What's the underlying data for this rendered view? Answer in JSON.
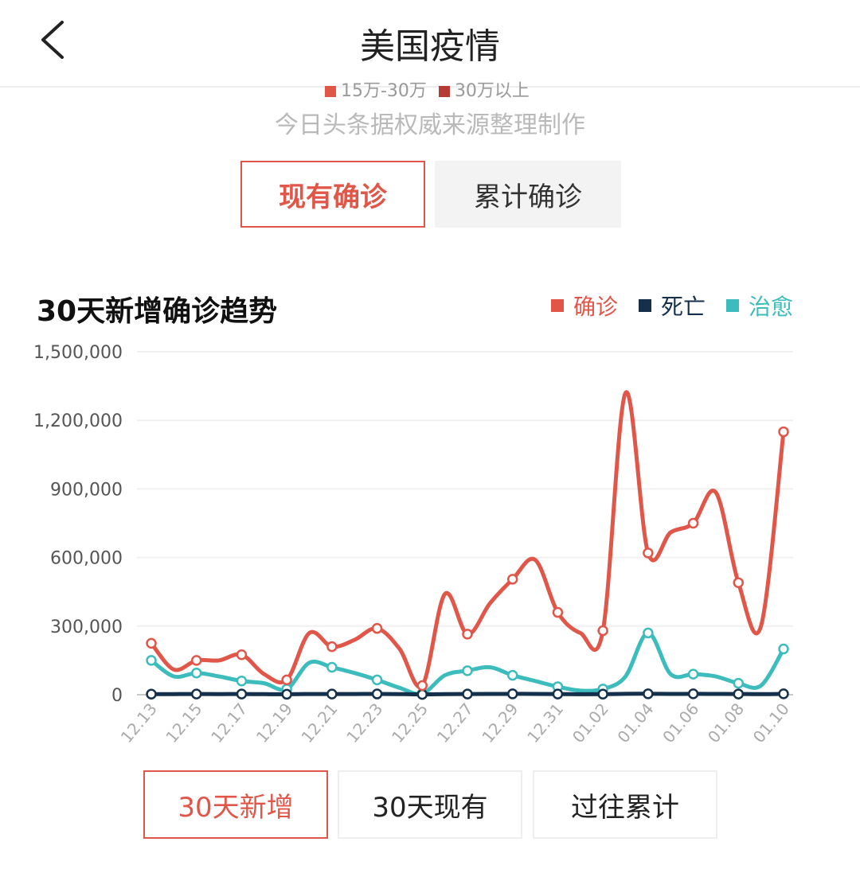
{
  "header": {
    "title": "美国疫情",
    "back_icon": "chevron-left-icon"
  },
  "partial_legend": [
    {
      "label": "15万-30万",
      "color": "#e0574a"
    },
    {
      "label": "30万以上",
      "color": "#b63b32"
    }
  ],
  "source_text": "今日头条据权威来源整理制作",
  "segments": [
    {
      "label": "现有确诊",
      "active": true
    },
    {
      "label": "累计确诊",
      "active": false
    }
  ],
  "chart_title": "30天新增确诊趋势",
  "legend": [
    {
      "label": "确诊",
      "color": "#e0574a"
    },
    {
      "label": "死亡",
      "color": "#14304a"
    },
    {
      "label": "治愈",
      "color": "#3cbcbc"
    }
  ],
  "chart_data": {
    "type": "line",
    "title": "30天新增确诊趋势",
    "ylim": [
      0,
      1500000
    ],
    "y_ticks": [
      "0",
      "300,000",
      "600,000",
      "900,000",
      "1,200,000",
      "1,500,000"
    ],
    "x_tick_labels": [
      "12.13",
      "12.15",
      "12.17",
      "12.19",
      "12.21",
      "12.23",
      "12.25",
      "12.27",
      "12.29",
      "12.31",
      "01.02",
      "01.04",
      "01.06",
      "01.08",
      "01.10"
    ],
    "x": [
      "12.13",
      "12.14",
      "12.15",
      "12.16",
      "12.17",
      "12.18",
      "12.19",
      "12.20",
      "12.21",
      "12.22",
      "12.23",
      "12.24",
      "12.25",
      "12.26",
      "12.27",
      "12.28",
      "12.29",
      "12.30",
      "12.31",
      "01.01",
      "01.02",
      "01.03",
      "01.04",
      "01.05",
      "01.06",
      "01.07",
      "01.08",
      "01.09",
      "01.10"
    ],
    "series": [
      {
        "name": "确诊",
        "color": "#e0574a",
        "values": [
          225000,
          110000,
          150000,
          150000,
          175000,
          90000,
          65000,
          270000,
          210000,
          240000,
          290000,
          200000,
          40000,
          440000,
          265000,
          400000,
          505000,
          590000,
          360000,
          270000,
          280000,
          1320000,
          620000,
          710000,
          750000,
          885000,
          490000,
          300000,
          1150000
        ]
      },
      {
        "name": "死亡",
        "color": "#14304a",
        "values": [
          2500,
          2800,
          3000,
          2700,
          3000,
          2400,
          2000,
          3200,
          3100,
          3200,
          3300,
          2800,
          1500,
          2500,
          3000,
          3400,
          3700,
          3600,
          3000,
          2300,
          2500,
          4000,
          4100,
          3500,
          3800,
          3600,
          3200,
          2500,
          4000
        ]
      },
      {
        "name": "治愈",
        "color": "#3cbcbc",
        "values": [
          150000,
          80000,
          95000,
          80000,
          60000,
          50000,
          25000,
          140000,
          120000,
          95000,
          65000,
          30000,
          5000,
          85000,
          105000,
          120000,
          85000,
          60000,
          35000,
          18000,
          25000,
          80000,
          270000,
          90000,
          90000,
          80000,
          50000,
          40000,
          200000
        ]
      }
    ]
  },
  "bottom_tabs": [
    {
      "label": "30天新增",
      "active": true
    },
    {
      "label": "30天现有",
      "active": false
    },
    {
      "label": "过往累计",
      "active": false
    }
  ]
}
